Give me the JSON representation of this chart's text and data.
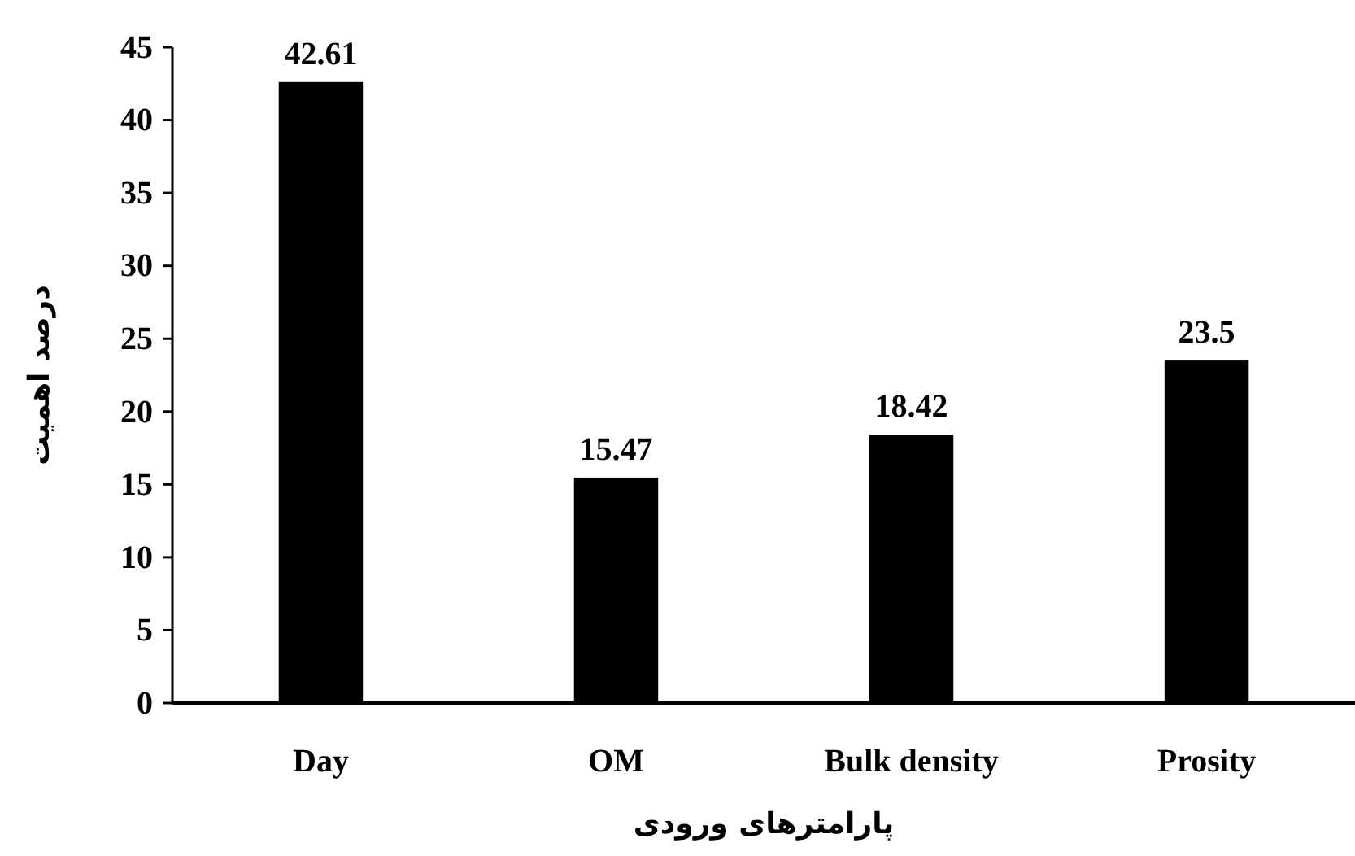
{
  "chart_data": {
    "type": "bar",
    "categories": [
      "Day",
      "OM",
      "Bulk density",
      "Prosity"
    ],
    "values": [
      42.61,
      15.47,
      18.42,
      23.5
    ],
    "color": "#000000",
    "ylim": [
      0,
      45
    ],
    "yticks": [
      0,
      5,
      10,
      15,
      20,
      25,
      30,
      35,
      40,
      45
    ],
    "xlabel": "پارامترهای ورودی",
    "ylabel": "درصد اهمیت",
    "data_labels": true,
    "grid": false
  }
}
